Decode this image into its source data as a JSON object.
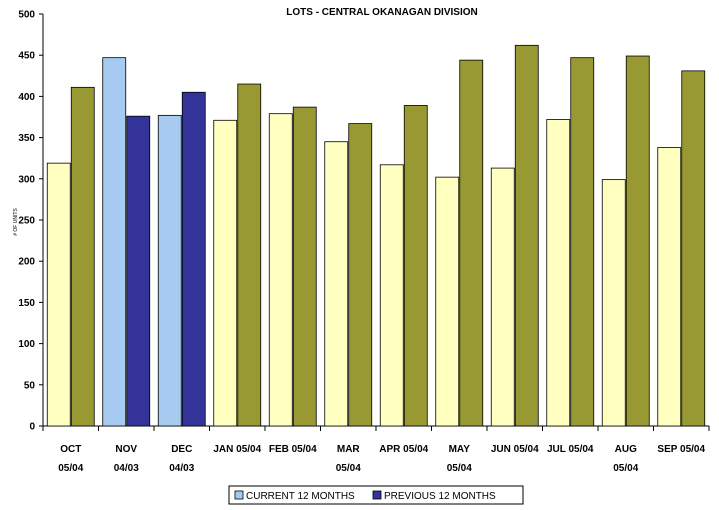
{
  "chart_data": {
    "type": "bar",
    "title": "LOTS - CENTRAL OKANAGAN DIVISION",
    "ylabel": "# OF UNITS",
    "xlabel": "",
    "ylim": [
      0,
      500
    ],
    "yticks": [
      "0",
      "50",
      "100",
      "150",
      "200",
      "250",
      "300",
      "350",
      "400",
      "450",
      "500"
    ],
    "categories": [
      [
        "OCT",
        "05/04"
      ],
      [
        "NOV",
        "04/03"
      ],
      [
        "DEC",
        "04/03"
      ],
      [
        "JAN 05/04"
      ],
      [
        "FEB 05/04"
      ],
      [
        "MAR",
        "05/04"
      ],
      [
        "APR 05/04"
      ],
      [
        "MAY",
        "05/04"
      ],
      [
        "JUN 05/04"
      ],
      [
        "JUL 05/04"
      ],
      [
        "AUG",
        "05/04"
      ],
      [
        "SEP 05/04"
      ]
    ],
    "series": [
      {
        "name": "CURRENT 12 MONTHS",
        "values": [
          319,
          447,
          377,
          371,
          379,
          345,
          317,
          302,
          313,
          372,
          299,
          338
        ]
      },
      {
        "name": "PREVIOUS 12 MONTHS",
        "values": [
          411,
          376,
          405,
          415,
          387,
          367,
          389,
          444,
          462,
          447,
          449,
          431
        ]
      }
    ],
    "bar_colors": {
      "current_light": "#FFFFC0",
      "previous_olive": "#999933",
      "current_highlight": "#A6CAF0",
      "previous_highlight": "#333399"
    },
    "highlighted_categories": [
      1,
      2
    ],
    "legend": {
      "position": "bottom",
      "items": [
        {
          "label": "CURRENT 12 MONTHS",
          "color": "#A6CAF0"
        },
        {
          "label": "PREVIOUS 12 MONTHS",
          "color": "#333399"
        }
      ]
    },
    "grid": false
  }
}
